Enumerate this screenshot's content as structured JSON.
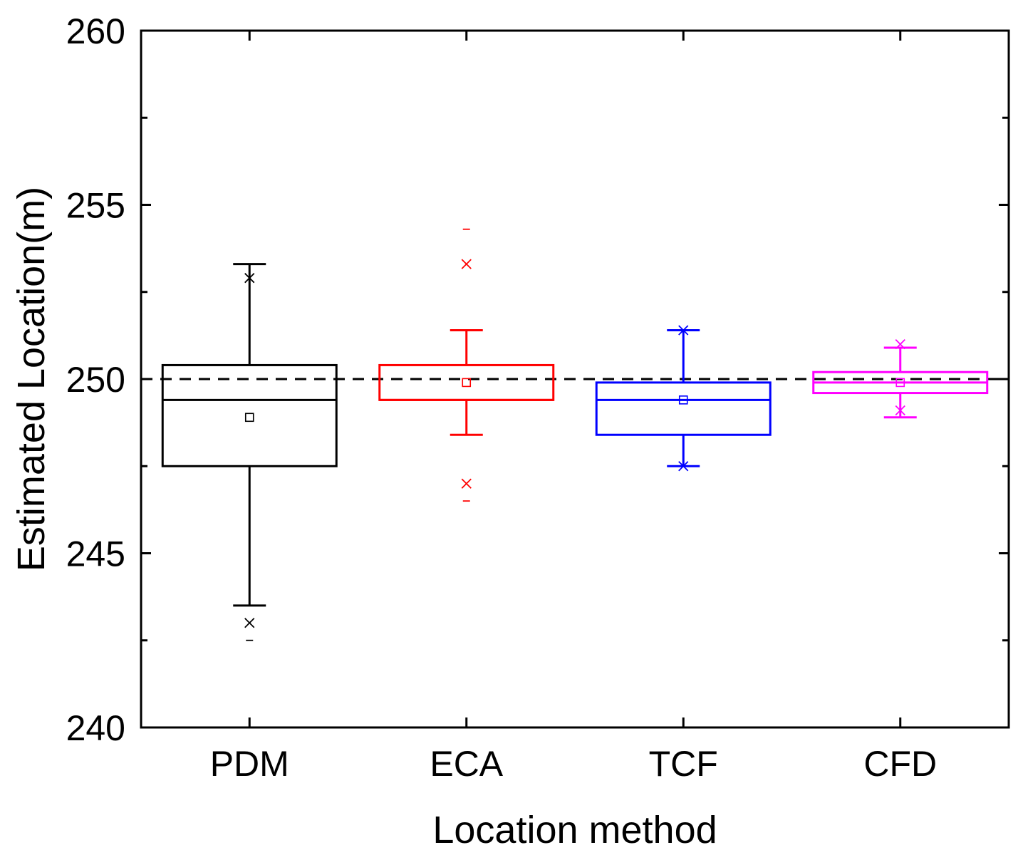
{
  "chart_data": {
    "type": "box",
    "xlabel": "Location method",
    "ylabel": "Estimated Location(m)",
    "ylim": [
      240,
      260
    ],
    "yticks": [
      240,
      245,
      250,
      255,
      260
    ],
    "reference_line": {
      "value": 250,
      "style": "dashed",
      "color": "#000000"
    },
    "categories": [
      "PDM",
      "ECA",
      "TCF",
      "CFD"
    ],
    "series": [
      {
        "name": "PDM",
        "color": "#000000",
        "q1": 247.5,
        "median": 249.4,
        "q3": 250.4,
        "whisker_low": 243.5,
        "whisker_high": 253.3,
        "mean": 248.9,
        "x_marks": [
          252.9,
          243.0
        ],
        "dash_marks": [
          242.5
        ]
      },
      {
        "name": "ECA",
        "color": "#ff0000",
        "q1": 249.4,
        "median": 249.4,
        "q3": 250.4,
        "whisker_low": 248.4,
        "whisker_high": 251.4,
        "mean": 249.9,
        "x_marks": [
          253.3,
          247.0
        ],
        "dash_marks": [
          254.3,
          246.5
        ]
      },
      {
        "name": "TCF",
        "color": "#0000ff",
        "q1": 248.4,
        "median": 249.4,
        "q3": 249.9,
        "whisker_low": 247.5,
        "whisker_high": 251.4,
        "mean": 249.4,
        "x_marks": [
          251.4,
          247.5
        ],
        "dash_marks": []
      },
      {
        "name": "CFD",
        "color": "#ff00ff",
        "q1": 249.6,
        "median": 249.9,
        "q3": 250.2,
        "whisker_low": 248.9,
        "whisker_high": 250.9,
        "mean": 249.9,
        "x_marks": [
          251.0,
          249.1
        ],
        "dash_marks": []
      }
    ]
  }
}
